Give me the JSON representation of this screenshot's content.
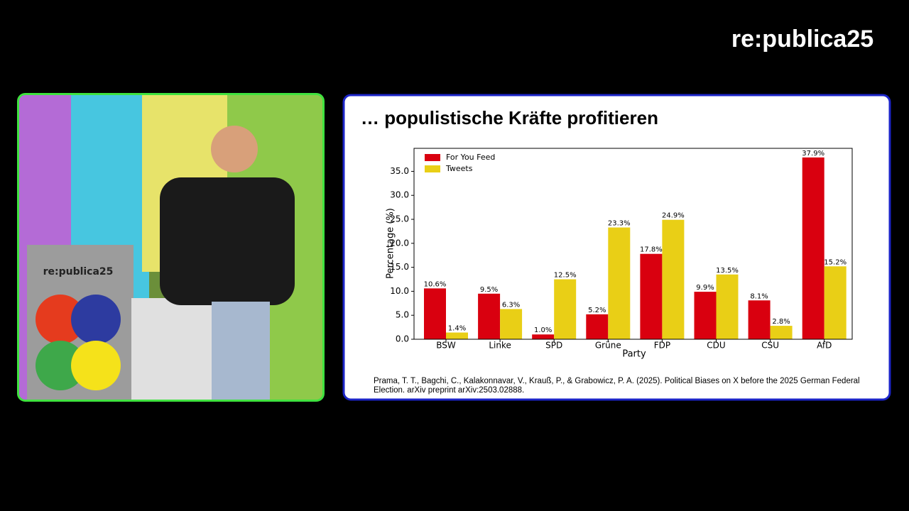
{
  "logo": "re:publica25",
  "podium_logo": "re:publica25",
  "slide_title": "… populistische Kräfte profitieren",
  "citation": [
    "Prama, T. T., Bagchi, C., Kalakonnavar, V., Krauß, P., & Grabowicz, P. A. (2025). Political Biases on X before the 2025 German Federal",
    "Election. arXiv preprint arXiv:2503.02888."
  ],
  "chart_data": {
    "type": "bar",
    "x_label": "Party",
    "y_label": "Percentage (%)",
    "categories": [
      "BSW",
      "Linke",
      "SPD",
      "Grüne",
      "FDP",
      "CDU",
      "CSU",
      "AfD"
    ],
    "series": [
      {
        "name": "For You Feed",
        "color": "#d9000f",
        "values": [
          10.6,
          9.5,
          1.0,
          5.2,
          17.8,
          9.9,
          8.1,
          37.9
        ],
        "value_labels": [
          "10.6%",
          "9.5%",
          "1.0%",
          "5.2%",
          "17.8%",
          "9.9%",
          "8.1%",
          "37.9%"
        ]
      },
      {
        "name": "Tweets",
        "color": "#e9cf16",
        "values": [
          1.4,
          6.3,
          12.5,
          23.3,
          24.9,
          13.5,
          2.8,
          15.2
        ],
        "value_labels": [
          "1.4%",
          "6.3%",
          "12.5%",
          "23.3%",
          "24.9%",
          "13.5%",
          "2.8%",
          "15.2%"
        ]
      }
    ],
    "ylim": [
      0,
      39.8
    ],
    "yticks": [
      {
        "value": 0,
        "label": "0.0"
      },
      {
        "value": 5,
        "label": "5.0"
      },
      {
        "value": 10,
        "label": "10.0"
      },
      {
        "value": 15,
        "label": "15.0"
      },
      {
        "value": 20,
        "label": "20.0"
      },
      {
        "value": 25,
        "label": "25.0"
      },
      {
        "value": 30,
        "label": "30.0"
      },
      {
        "value": 35,
        "label": "35.0"
      }
    ],
    "legend": "upper left"
  }
}
